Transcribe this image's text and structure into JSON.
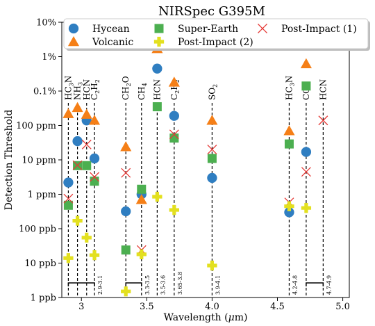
{
  "chart_data": {
    "type": "scatter",
    "title": "NIRSpec G395M",
    "xlabel": "Wavelength (μm)",
    "xlabel_main": "Wavelength (",
    "xlabel_mu": "μ",
    "xlabel_end": "m)",
    "ylabel": "Detection Threshold",
    "xlim": [
      2.85,
      5.05
    ],
    "ylim_log10": [
      -9,
      -1
    ],
    "y_scale": "log",
    "grid": false,
    "legend_position": "top",
    "xticks": [
      {
        "value": 3.0,
        "label": "3"
      },
      {
        "value": 3.5,
        "label": "3.5"
      },
      {
        "value": 4.0,
        "label": "4.0"
      },
      {
        "value": 4.5,
        "label": "4.5"
      },
      {
        "value": 5.0,
        "label": "5.0"
      }
    ],
    "yticks": [
      {
        "value": "1e-9",
        "label": "1 ppb"
      },
      {
        "value": "1e-8",
        "label": "10 ppb"
      },
      {
        "value": "1e-7",
        "label": "100 ppb"
      },
      {
        "value": "1e-6",
        "label": "1 ppm"
      },
      {
        "value": "1e-5",
        "label": "10 ppm"
      },
      {
        "value": "1e-4",
        "label": "100 ppm"
      },
      {
        "value": "1e-3",
        "label": "0.1%"
      },
      {
        "value": "1e-2",
        "label": "1%"
      },
      {
        "value": "1e-1",
        "label": "10%"
      }
    ],
    "molecule_lines": [
      {
        "x": 2.9,
        "label": "HC3N",
        "sub": "3",
        "base": "HC",
        "tail": "N"
      },
      {
        "x": 2.97,
        "label": "NH3",
        "sub": "3",
        "base": "NH",
        "tail": ""
      },
      {
        "x": 3.04,
        "label": "HCN",
        "sub": "",
        "base": "HCN",
        "tail": ""
      },
      {
        "x": 3.1,
        "label": "C2H2",
        "sub": "2",
        "base": "C",
        "tail": "H",
        "sub2": "2"
      },
      {
        "x": 3.34,
        "label": "CH2O",
        "sub": "2",
        "base": "CH",
        "tail": "O"
      },
      {
        "x": 3.46,
        "label": "CH4",
        "sub": "4",
        "base": "CH",
        "tail": ""
      },
      {
        "x": 3.58,
        "label": "HCN",
        "sub": "",
        "base": "HCN",
        "tail": ""
      },
      {
        "x": 3.71,
        "label": "C2H2",
        "sub": "2",
        "base": "C",
        "tail": "H",
        "sub2": "2"
      },
      {
        "x": 4.0,
        "label": "SO2",
        "sub": "2",
        "base": "SO",
        "tail": ""
      },
      {
        "x": 4.59,
        "label": "HC3N",
        "sub": "3",
        "base": "HC",
        "tail": "N"
      },
      {
        "x": 4.72,
        "label": "CO",
        "sub": "",
        "base": "CO",
        "tail": ""
      },
      {
        "x": 4.85,
        "label": "HCN",
        "sub": "",
        "base": "HCN",
        "tail": ""
      }
    ],
    "band_brackets": [
      {
        "x1": 2.9,
        "x2": 3.1,
        "label": "2.9-3.1"
      },
      {
        "x1": 3.34,
        "x2": 3.46,
        "label": "3.3-3.5"
      },
      {
        "x1": 3.58,
        "x2": 3.58,
        "label": "3.5-3.6"
      },
      {
        "x1": 3.71,
        "x2": 3.71,
        "label": "3.65-3.8"
      },
      {
        "x1": 4.0,
        "x2": 4.0,
        "label": "3.9-4.1"
      },
      {
        "x1": 4.59,
        "x2": 4.59,
        "label": "4.2-4.8"
      },
      {
        "x1": 4.72,
        "x2": 4.85,
        "label": "4.7-4.9"
      }
    ],
    "series": [
      {
        "name": "Hycean",
        "marker": "circle",
        "color": "#2f7ec1",
        "points": [
          {
            "x": 2.9,
            "y": "2.2e-6"
          },
          {
            "x": 2.97,
            "y": "3.5e-5"
          },
          {
            "x": 3.04,
            "y": "1.4e-4"
          },
          {
            "x": 3.1,
            "y": "1.1e-5"
          },
          {
            "x": 3.34,
            "y": "3.2e-7"
          },
          {
            "x": 3.46,
            "y": "1.0e-6"
          },
          {
            "x": 3.58,
            "y": "4.5e-3"
          },
          {
            "x": 3.71,
            "y": "1.9e-4"
          },
          {
            "x": 4.0,
            "y": "3.0e-6"
          },
          {
            "x": 4.59,
            "y": "3.0e-7"
          },
          {
            "x": 4.72,
            "y": "1.7e-5"
          }
        ]
      },
      {
        "name": "Volcanic",
        "marker": "triangle",
        "color": "#f57f17",
        "points": [
          {
            "x": 2.9,
            "y": "2.2e-4"
          },
          {
            "x": 2.97,
            "y": "3.3e-4"
          },
          {
            "x": 3.04,
            "y": "2.1e-4"
          },
          {
            "x": 3.1,
            "y": "1.4e-4"
          },
          {
            "x": 3.34,
            "y": "2.4e-5"
          },
          {
            "x": 3.46,
            "y": "7.0e-7"
          },
          {
            "x": 3.58,
            "y": "1.7e-2"
          },
          {
            "x": 3.71,
            "y": "1.8e-3"
          },
          {
            "x": 4.0,
            "y": "1.4e-4"
          },
          {
            "x": 4.59,
            "y": "7.0e-5"
          },
          {
            "x": 4.72,
            "y": "6.2e-3"
          }
        ]
      },
      {
        "name": "Super-Earth",
        "marker": "square",
        "color": "#4caf50",
        "points": [
          {
            "x": 2.9,
            "y": "4.8e-7"
          },
          {
            "x": 2.97,
            "y": "6.8e-6"
          },
          {
            "x": 3.04,
            "y": "6.8e-6"
          },
          {
            "x": 3.1,
            "y": "2.4e-6"
          },
          {
            "x": 3.34,
            "y": "2.4e-8"
          },
          {
            "x": 3.46,
            "y": "1.4e-6"
          },
          {
            "x": 3.58,
            "y": "3.5e-4"
          },
          {
            "x": 3.71,
            "y": "4.3e-5"
          },
          {
            "x": 4.0,
            "y": "1.1e-5"
          },
          {
            "x": 4.59,
            "y": "2.9e-5"
          },
          {
            "x": 4.72,
            "y": "1.4e-3"
          }
        ]
      },
      {
        "name": "Post-Impact (1)",
        "marker": "x",
        "color": "#e53935",
        "points": [
          {
            "x": 2.9,
            "y": "7.5e-7"
          },
          {
            "x": 2.97,
            "y": "7.0e-6"
          },
          {
            "x": 3.04,
            "y": "2.8e-5"
          },
          {
            "x": 3.1,
            "y": "3.2e-6"
          },
          {
            "x": 3.34,
            "y": "4.2e-6"
          },
          {
            "x": 3.46,
            "y": "2.4e-8"
          },
          {
            "x": 3.71,
            "y": "5.5e-5"
          },
          {
            "x": 4.0,
            "y": "2.0e-5"
          },
          {
            "x": 4.59,
            "y": "5.8e-7"
          },
          {
            "x": 4.72,
            "y": "4.5e-6"
          },
          {
            "x": 4.85,
            "y": "1.4e-4"
          }
        ]
      },
      {
        "name": "Post-Impact (2)",
        "marker": "plus",
        "color": "#e3e01f",
        "points": [
          {
            "x": 2.9,
            "y": "1.4e-8"
          },
          {
            "x": 2.97,
            "y": "1.7e-7"
          },
          {
            "x": 3.04,
            "y": "5.5e-8"
          },
          {
            "x": 3.1,
            "y": "1.7e-8"
          },
          {
            "x": 3.34,
            "y": "1.5e-9"
          },
          {
            "x": 3.46,
            "y": "1.8e-8"
          },
          {
            "x": 3.58,
            "y": "8.5e-7"
          },
          {
            "x": 3.71,
            "y": "3.5e-7"
          },
          {
            "x": 4.0,
            "y": "8.5e-9"
          },
          {
            "x": 4.59,
            "y": "4.5e-7"
          },
          {
            "x": 4.72,
            "y": "4.0e-7"
          }
        ]
      }
    ],
    "legend_order": [
      "Hycean",
      "Volcanic",
      "Super-Earth",
      "Post-Impact (2)",
      "Post-Impact (1)"
    ]
  }
}
